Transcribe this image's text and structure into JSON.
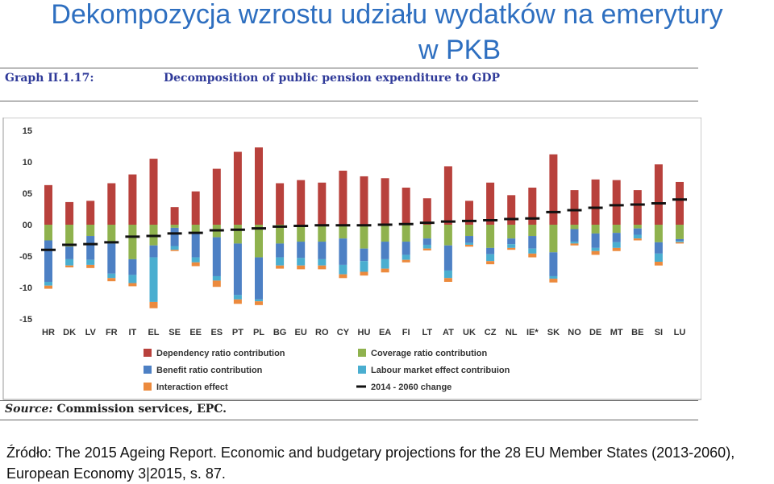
{
  "heading": {
    "line1": "Dekompozycja wzrostu udziału wydatków na emerytury",
    "line2": "w PKB"
  },
  "graph": {
    "label": "Graph II.1.17:",
    "title": "Decomposition of public pension expenditure to GDP",
    "source_label": "Source:",
    "source_text": "Commission services, EPC."
  },
  "footer": {
    "text": "Źródło: The 2015 Ageing Report. Economic and budgetary projections for the  28 EU Member States (2013-2060),  European Economy 3|2015, s. 87."
  },
  "colors": {
    "dependency": "#b8413c",
    "coverage": "#8fb24e",
    "benefit": "#4d80c4",
    "labour": "#4aaed0",
    "interaction": "#ec8a3d",
    "change": "#111111"
  },
  "chart_data": {
    "type": "bar",
    "title": "Decomposition of public pension expenditure to GDP",
    "y_tick_labels": [
      "15",
      "10",
      "05",
      "00",
      "-05",
      "-10",
      "-15"
    ],
    "ylim": [
      -15,
      15
    ],
    "yticks": [
      15,
      10,
      5,
      0,
      -5,
      -10,
      -15
    ],
    "grid": false,
    "legend_position": "bottom",
    "categories": [
      "HR",
      "DK",
      "LV",
      "FR",
      "IT",
      "EL",
      "SE",
      "EE",
      "ES",
      "PT",
      "PL",
      "BG",
      "EU",
      "RO",
      "CY",
      "HU",
      "EA",
      "FI",
      "LT",
      "AT",
      "UK",
      "CZ",
      "NL",
      "IE*",
      "SK",
      "NO",
      "DE",
      "MT",
      "BE",
      "SI",
      "LU"
    ],
    "series": [
      {
        "name": "Dependency ratio contribution",
        "key": "dependency",
        "values": [
          6.3,
          3.6,
          3.8,
          6.6,
          8.0,
          10.5,
          2.8,
          5.3,
          8.9,
          11.6,
          12.3,
          6.6,
          7.1,
          6.7,
          8.6,
          7.7,
          7.4,
          5.9,
          4.2,
          9.3,
          3.8,
          6.7,
          4.7,
          5.9,
          11.2,
          5.5,
          7.2,
          7.1,
          5.5,
          9.6,
          6.8
        ]
      },
      {
        "name": "Coverage ratio contribution",
        "key": "coverage",
        "values": [
          -2.5,
          -3.5,
          -1.8,
          -3.0,
          -5.5,
          -3.3,
          -0.5,
          -1.2,
          -2.0,
          -3.0,
          -5.2,
          -3.0,
          -2.7,
          -2.7,
          -2.2,
          -3.8,
          -2.7,
          -2.7,
          -2.2,
          -3.3,
          -1.8,
          -3.7,
          -2.2,
          -1.8,
          -4.4,
          -0.7,
          -1.4,
          -1.3,
          -0.6,
          -2.8,
          -2.3
        ]
      },
      {
        "name": "Benefit ratio  contribution",
        "key": "benefit",
        "values": [
          -6.6,
          -2.0,
          -3.8,
          -4.8,
          -2.5,
          -1.9,
          -2.9,
          -4.0,
          -6.2,
          -8.2,
          -6.7,
          -2.2,
          -2.6,
          -2.8,
          -4.2,
          -2.0,
          -2.8,
          -2.1,
          -1.0,
          -4.0,
          -1.1,
          -1.0,
          -0.9,
          -2.0,
          -3.8,
          -2.0,
          -2.3,
          -1.5,
          -1.0,
          -1.8,
          -0.3
        ]
      },
      {
        "name": "Labour market effect contribuion",
        "key": "labour",
        "values": [
          -0.6,
          -1.0,
          -0.8,
          -0.7,
          -1.3,
          -7.1,
          -0.6,
          -0.8,
          -0.7,
          -0.7,
          -0.3,
          -1.3,
          -1.2,
          -1.0,
          -1.5,
          -1.7,
          -1.5,
          -0.8,
          -0.6,
          -1.2,
          -0.3,
          -1.1,
          -0.6,
          -0.8,
          -0.4,
          -0.3,
          -0.5,
          -0.9,
          -0.6,
          -1.3,
          -0.2
        ]
      },
      {
        "name": "Interaction effect",
        "key": "interaction",
        "values": [
          -0.5,
          -0.3,
          -0.5,
          -0.5,
          -0.5,
          -1.0,
          -0.2,
          -0.6,
          -1.0,
          -0.7,
          -0.6,
          -0.5,
          -0.6,
          -0.6,
          -0.6,
          -0.6,
          -0.6,
          -0.4,
          -0.3,
          -0.6,
          -0.3,
          -0.5,
          -0.3,
          -0.6,
          -0.6,
          -0.3,
          -0.6,
          -0.5,
          -0.3,
          -0.6,
          -0.2
        ]
      }
    ],
    "line": {
      "name": "2014 - 2060 change",
      "key": "change",
      "values": [
        -4.0,
        -3.2,
        -3.1,
        -2.8,
        -1.9,
        -1.8,
        -1.4,
        -1.3,
        -0.9,
        -0.8,
        -0.6,
        -0.3,
        -0.2,
        -0.1,
        -0.1,
        -0.1,
        0.0,
        0.1,
        0.3,
        0.5,
        0.6,
        0.7,
        0.9,
        1.0,
        2.0,
        2.3,
        2.7,
        3.1,
        3.2,
        3.4,
        4.0
      ]
    }
  }
}
